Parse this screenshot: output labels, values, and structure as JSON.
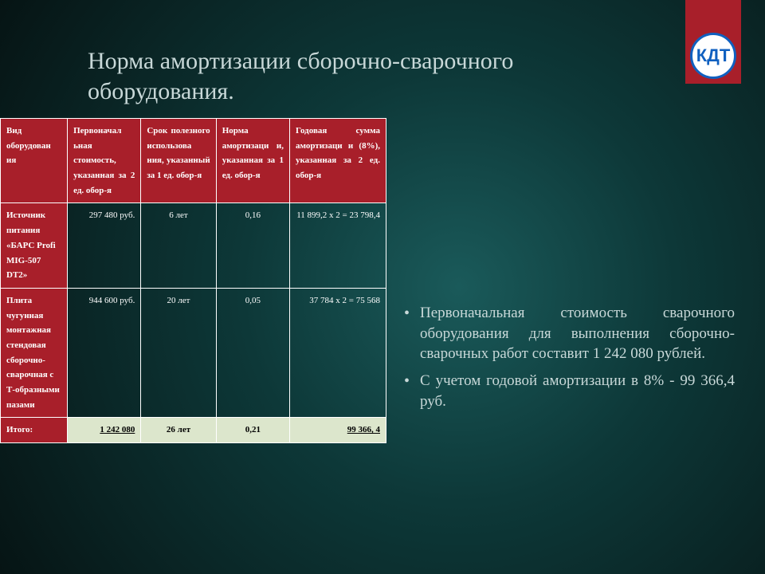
{
  "logo_text": "КДТ",
  "title": "Норма амортизации сборочно-сварочного оборудования.",
  "table": {
    "headers": [
      "Вид оборудован ия",
      "Первоначал ьная стоимость, указанная за 2 ед. обор-я",
      "Срок полезного использова ния, указанный за 1 ед. обор-я",
      "Норма амортизаци и, указанная за 1 ед. обор-я",
      "Годовая сумма амортизаци и (8%), указанная за 2 ед. обор-я"
    ],
    "rows": [
      {
        "label": "Источник питания «БАРС Profi MIG-507 DT2»",
        "cost": "297 480 руб.",
        "term": "6 лет",
        "rate": "0,16",
        "annual": "11 899,2 х 2 = 23 798,4"
      },
      {
        "label": "Плита чугунная монтажная стендовая сборочно-сварочная с Т-образными пазами",
        "cost": "944 600 руб.",
        "term": "20 лет",
        "rate": "0,05",
        "annual": "37 784 х 2 = 75 568"
      }
    ],
    "total": {
      "label": "Итого:",
      "cost": "1 242 080",
      "term": "26 лет",
      "rate": "0,21",
      "annual": "99 366, 4"
    }
  },
  "bullets": [
    "Первоначальная стоимость сварочного оборудования для выполнения сборочно-сварочных работ составит 1 242 080 рублей.",
    "С учетом годовой амортизации в 8% - 99 366,4 руб."
  ],
  "colors": {
    "accent": "#a81f2a",
    "text_light": "#c8d8d8",
    "total_bg": "#dce6cc"
  }
}
